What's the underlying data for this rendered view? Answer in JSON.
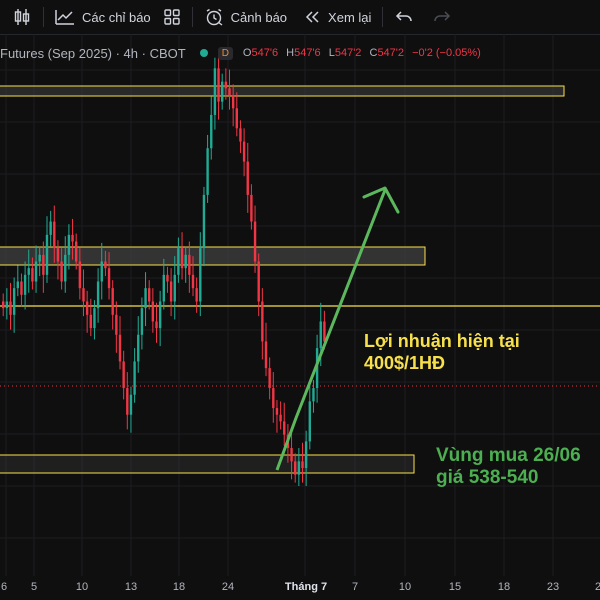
{
  "toolbar": {
    "indicators_label": "Các chỉ báo",
    "alerts_label": "Cảnh báo",
    "replay_label": "Xem lại"
  },
  "legend": {
    "symbol": "Futures (Sep 2025) · 4h · CBOT",
    "badge": "D",
    "open_label": "O",
    "open": "547'6",
    "high_label": "H",
    "high": "547'6",
    "low_label": "L",
    "low": "547'2",
    "close_label": "C",
    "close": "547'2",
    "change": "−0'2 (−0.05%)"
  },
  "annotations": {
    "profit_line1": "Lợi nhuận hiện tại",
    "profit_line2": "400$/1HĐ",
    "buy_line1": "Vùng mua 26/06",
    "buy_line2": "giá 538-540"
  },
  "xaxis": {
    "ticks": [
      "6",
      "5",
      "10",
      "13",
      "18",
      "24",
      "Tháng 7",
      "7",
      "10",
      "15",
      "18",
      "23",
      "2"
    ],
    "highlight": "Tháng 7"
  },
  "colors": {
    "up": "#22ab94",
    "down": "#f23645",
    "zone_border": "#f7e04b",
    "arrow": "#5cb85c"
  },
  "chart_data": {
    "type": "candlestick",
    "interval": "4h",
    "candles_close": [
      552,
      553,
      551,
      555,
      556,
      554,
      557,
      558,
      556,
      559,
      560,
      557,
      563,
      565,
      561,
      559,
      556,
      560,
      563,
      562,
      559,
      555,
      553,
      551,
      549,
      552,
      556,
      559,
      558,
      555,
      551,
      548,
      544,
      540,
      536,
      539,
      544,
      548,
      552,
      555,
      553,
      550,
      549,
      553,
      557,
      556,
      553,
      557,
      561,
      558,
      560,
      557,
      555,
      553,
      561,
      569,
      576,
      581,
      588,
      583,
      586,
      585,
      584,
      582,
      579,
      577,
      574,
      569,
      565,
      559,
      553,
      547,
      543,
      540,
      537,
      536,
      535,
      533,
      531,
      529,
      527,
      529,
      528,
      532,
      538,
      540,
      546,
      550,
      547
    ]
  }
}
